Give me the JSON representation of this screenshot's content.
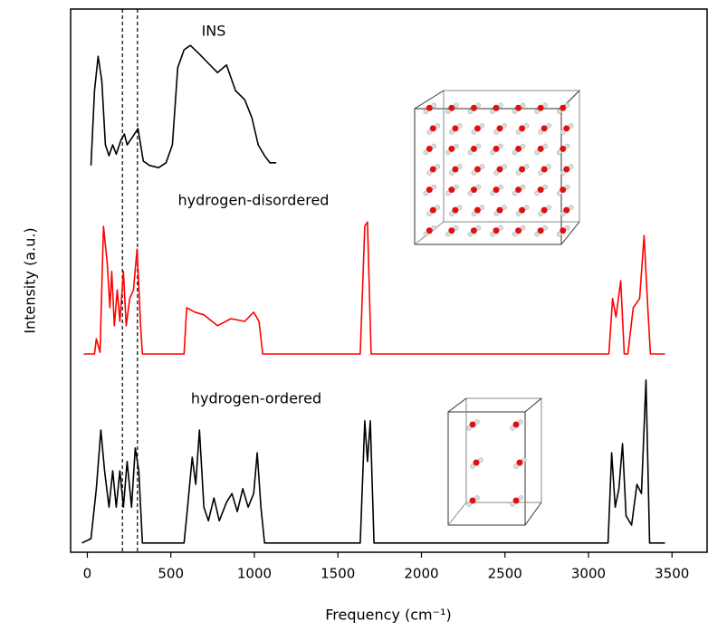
{
  "chart_data": {
    "type": "line",
    "xlabel": "Frequency (cm⁻¹)",
    "ylabel": "Intensity (a.u.)",
    "xlim": [
      -100,
      3710
    ],
    "ylim": [
      0,
      100
    ],
    "xticks": [
      0,
      500,
      1000,
      1500,
      2000,
      2500,
      3000,
      3500
    ],
    "reference_lines": [
      210,
      300
    ],
    "series": [
      {
        "name": "INS",
        "color": "#000000",
        "x": [
          22,
          43,
          65,
          87,
          108,
          130,
          152,
          173,
          200,
          222,
          238,
          276,
          303,
          335,
          373,
          427,
          471,
          509,
          541,
          579,
          617,
          671,
          725,
          779,
          833,
          887,
          942,
          985,
          1023,
          1061,
          1093,
          1131
        ],
        "values": [
          71.2,
          85,
          91.3,
          86.7,
          75,
          73,
          75,
          73.3,
          75.8,
          77,
          75,
          76.7,
          78,
          72,
          71.2,
          70.8,
          71.7,
          75,
          89.2,
          92.5,
          93.3,
          91.7,
          90,
          88.3,
          89.7,
          85,
          83.3,
          80,
          75,
          73,
          71.7,
          71.7
        ]
      },
      {
        "name": "hydrogen-disordered",
        "color": "#ff0000",
        "x": [
          -22,
          43,
          54,
          76,
          97,
          119,
          135,
          146,
          162,
          179,
          195,
          216,
          233,
          254,
          276,
          298,
          319,
          330,
          579,
          595,
          644,
          698,
          779,
          860,
          942,
          996,
          1028,
          1050,
          1634,
          1661,
          1677,
          1699,
          3122,
          3144,
          3165,
          3193,
          3214,
          3236,
          3268,
          3306,
          3333,
          3355,
          3371,
          3458
        ],
        "values": [
          36.5,
          36.5,
          39.3,
          36.8,
          60,
          53.3,
          45,
          51.7,
          41.7,
          48.3,
          42.5,
          51.7,
          41.7,
          46.7,
          48.3,
          55.8,
          41.7,
          36.5,
          36.5,
          45,
          44.2,
          43.7,
          41.7,
          43,
          42.5,
          44.2,
          42.5,
          36.5,
          36.5,
          60,
          60.8,
          36.5,
          36.5,
          46.7,
          43.3,
          50,
          36.5,
          36.5,
          45,
          46.7,
          58.3,
          45,
          36.5,
          36.5
        ]
      },
      {
        "name": "hydrogen-ordered",
        "color": "#000000",
        "x": [
          -32,
          22,
          54,
          81,
          103,
          130,
          152,
          173,
          195,
          216,
          238,
          265,
          287,
          308,
          330,
          579,
          600,
          628,
          649,
          671,
          698,
          725,
          758,
          790,
          833,
          866,
          898,
          931,
          963,
          996,
          1017,
          1039,
          1061,
          1634,
          1661,
          1677,
          1694,
          1716,
          3117,
          3139,
          3160,
          3182,
          3204,
          3225,
          3258,
          3290,
          3317,
          3344,
          3366,
          3458
        ],
        "values": [
          1.7,
          2.5,
          11.7,
          22.5,
          15,
          8.3,
          15,
          8.3,
          15,
          8.3,
          16.7,
          8.3,
          19.2,
          15,
          1.7,
          1.7,
          8.3,
          17.5,
          12.5,
          22.5,
          8.3,
          5.8,
          10,
          5.8,
          9.2,
          10.8,
          7.5,
          11.7,
          8.3,
          10.8,
          18.3,
          8.3,
          1.7,
          1.7,
          24.2,
          16.7,
          24.2,
          1.7,
          1.7,
          18.3,
          8.3,
          11.7,
          20,
          6.7,
          5,
          12.5,
          10.8,
          31.7,
          1.7,
          1.7
        ]
      }
    ]
  }
}
